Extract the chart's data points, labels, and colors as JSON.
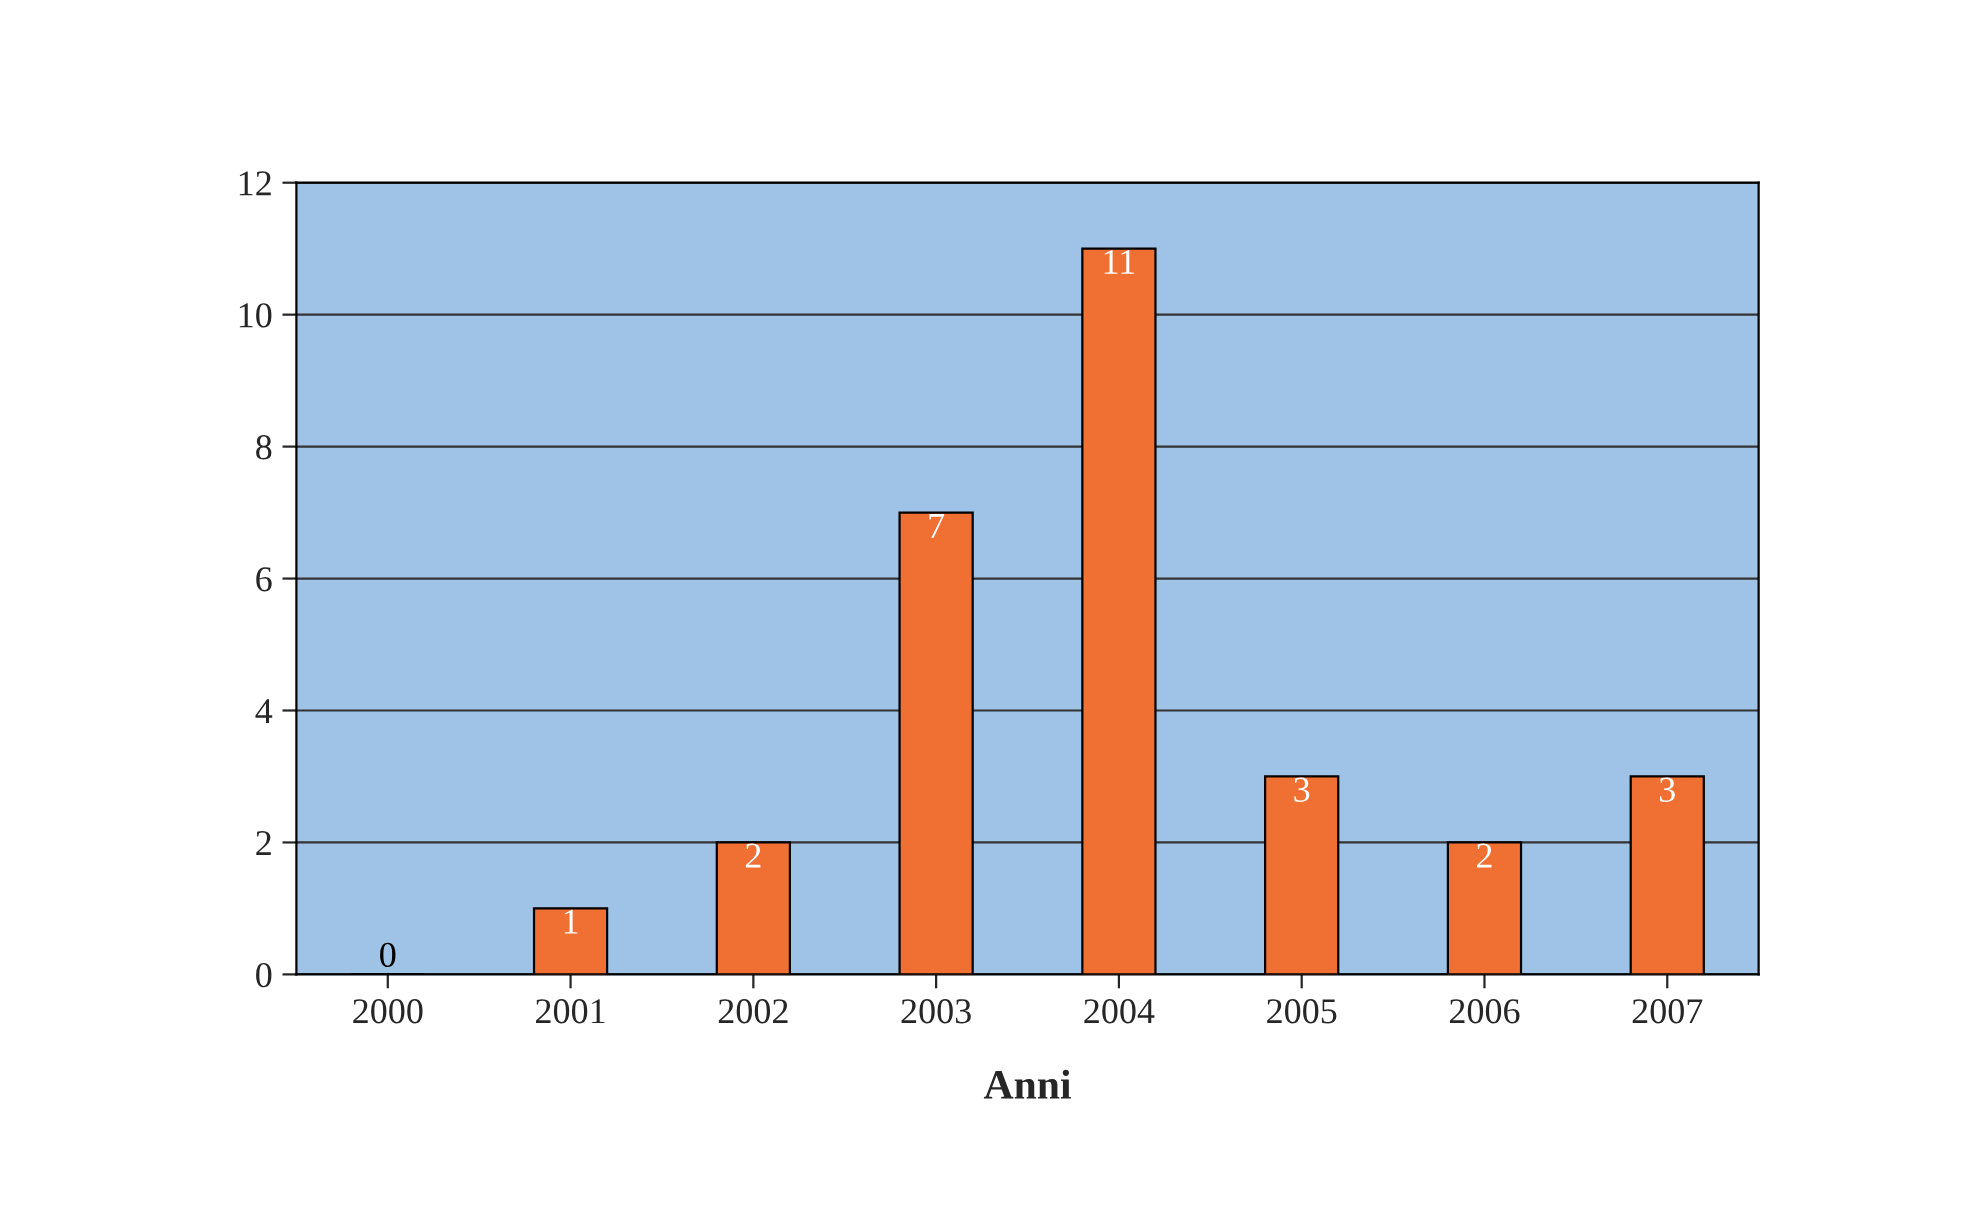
{
  "chart_data": {
    "type": "bar",
    "xlabel": "Anni",
    "categories": [
      "2000",
      "2001",
      "2002",
      "2003",
      "2004",
      "2005",
      "2006",
      "2007"
    ],
    "values": [
      0,
      1,
      2,
      7,
      11,
      3,
      2,
      3
    ],
    "color": "#f07033",
    "ylim": [
      0,
      12
    ],
    "yticks": [
      0,
      2,
      4,
      6,
      8,
      10,
      12
    ],
    "grid": "y",
    "data_labels": true
  }
}
